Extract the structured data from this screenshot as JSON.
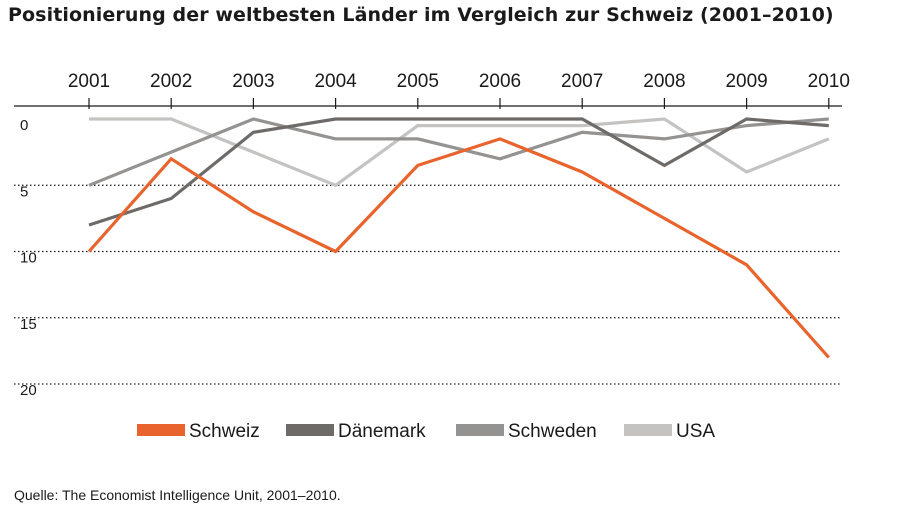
{
  "chart_data": {
    "type": "line",
    "title": "Positionierung der weltbesten Länder im Vergleich zur Schweiz (2001–2010)",
    "source": "Quelle: The Economist Intelligence Unit, 2001–2010.",
    "x": [
      "2001",
      "2002",
      "2003",
      "2004",
      "2005",
      "2006",
      "2007",
      "2008",
      "2009",
      "2010"
    ],
    "x_axis_position": "top",
    "y_reversed": true,
    "ylim": [
      0,
      20
    ],
    "yticks": [
      0,
      5,
      10,
      15,
      20
    ],
    "grid": "dotted horizontal at 5, 10, 15, 20",
    "legend_position": "bottom",
    "series": [
      {
        "name": "Schweiz",
        "color": "#e8642c",
        "values": [
          10,
          3,
          7,
          10,
          3.5,
          1.5,
          4,
          7.5,
          11,
          18
        ]
      },
      {
        "name": "Dänemark",
        "color": "#6e6a68",
        "values": [
          8,
          6,
          1,
          0,
          0,
          0,
          0,
          3.5,
          0,
          0.5
        ]
      },
      {
        "name": "Schweden",
        "color": "#959391",
        "values": [
          5,
          2.5,
          0,
          1.5,
          1.5,
          3,
          1,
          1.5,
          0.5,
          0
        ]
      },
      {
        "name": "USA",
        "color": "#c4c3c2",
        "values": [
          0,
          0,
          2.5,
          5,
          0.5,
          0.5,
          0.5,
          0,
          4,
          1.5
        ]
      }
    ]
  }
}
